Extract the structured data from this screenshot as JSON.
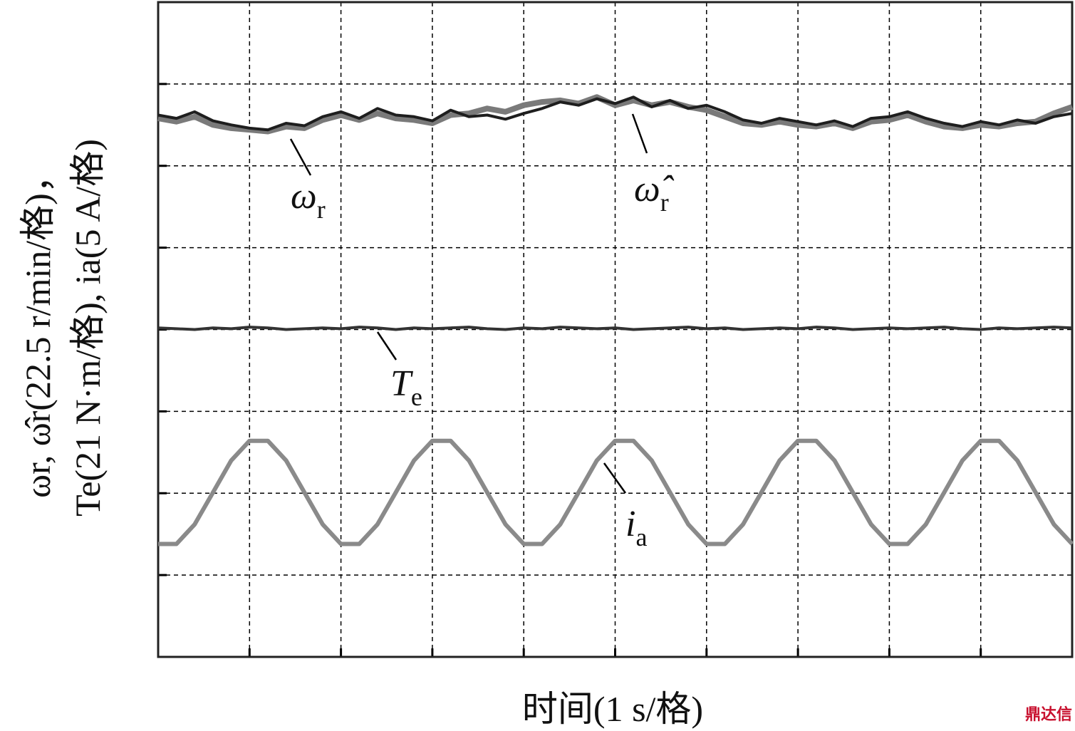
{
  "chart_data": {
    "type": "line",
    "ylabel": [
      "ωr, ω̂r(22.5 r/min/格)，",
      "Te(21 N·m/格), ia(5 A/格)"
    ],
    "xlabel": "时间(1 s/格)",
    "watermark": "鼎达信",
    "xlim": [
      0,
      10
    ],
    "ylim": [
      0,
      8
    ],
    "xticks": [
      0,
      1,
      2,
      3,
      4,
      5,
      6,
      7,
      8,
      9,
      10
    ],
    "yticks": [
      0,
      1,
      2,
      3,
      4,
      5,
      6,
      7,
      8
    ],
    "grid": true,
    "x": [
      0,
      0.2,
      0.4,
      0.6,
      0.8,
      1,
      1.2,
      1.4,
      1.6,
      1.8,
      2,
      2.2,
      2.4,
      2.6,
      2.8,
      3,
      3.2,
      3.4,
      3.6,
      3.8,
      4,
      4.2,
      4.4,
      4.6,
      4.8,
      5,
      5.2,
      5.4,
      5.6,
      5.8,
      6,
      6.2,
      6.4,
      6.6,
      6.8,
      7,
      7.2,
      7.4,
      7.6,
      7.8,
      8,
      8.2,
      8.4,
      8.6,
      8.8,
      9,
      9.2,
      9.4,
      9.6,
      9.8,
      10
    ],
    "series": [
      {
        "name": "ω̂",
        "subscript": "r",
        "color": "#7a7a7a",
        "values": [
          6.58,
          6.54,
          6.6,
          6.5,
          6.46,
          6.44,
          6.42,
          6.48,
          6.46,
          6.56,
          6.62,
          6.56,
          6.64,
          6.58,
          6.56,
          6.52,
          6.62,
          6.64,
          6.7,
          6.66,
          6.74,
          6.78,
          6.8,
          6.76,
          6.84,
          6.74,
          6.8,
          6.74,
          6.78,
          6.72,
          6.68,
          6.6,
          6.52,
          6.5,
          6.54,
          6.5,
          6.48,
          6.52,
          6.46,
          6.54,
          6.56,
          6.62,
          6.54,
          6.48,
          6.46,
          6.5,
          6.48,
          6.52,
          6.54,
          6.64,
          6.72
        ]
      },
      {
        "name": "ω",
        "subscript": "r",
        "color": "#1e1e1e",
        "values": [
          6.62,
          6.58,
          6.66,
          6.55,
          6.5,
          6.46,
          6.44,
          6.52,
          6.49,
          6.6,
          6.66,
          6.58,
          6.7,
          6.62,
          6.6,
          6.55,
          6.68,
          6.6,
          6.62,
          6.57,
          6.64,
          6.7,
          6.78,
          6.74,
          6.82,
          6.76,
          6.84,
          6.72,
          6.8,
          6.7,
          6.74,
          6.66,
          6.56,
          6.52,
          6.58,
          6.54,
          6.5,
          6.55,
          6.48,
          6.58,
          6.6,
          6.66,
          6.58,
          6.52,
          6.48,
          6.54,
          6.5,
          6.56,
          6.52,
          6.6,
          6.64
        ]
      },
      {
        "name": "T",
        "subscript": "e",
        "color": "#333333",
        "values": [
          4.02,
          4.01,
          4.0,
          4.02,
          4.01,
          4.03,
          4.02,
          4.0,
          4.01,
          4.02,
          4.01,
          4.03,
          4.02,
          4.0,
          4.02,
          4.01,
          4.02,
          4.03,
          4.01,
          4.0,
          4.02,
          4.01,
          4.03,
          4.02,
          4.01,
          4.02,
          4.0,
          4.01,
          4.02,
          4.03,
          4.01,
          4.02,
          4.0,
          4.01,
          4.02,
          4.01,
          4.03,
          4.02,
          4.0,
          4.01,
          4.02,
          4.01,
          4.02,
          4.03,
          4.01,
          4.0,
          4.02,
          4.01,
          4.02,
          4.03,
          4.02
        ]
      },
      {
        "name": "i",
        "subscript": "a",
        "color": "#8a8a8a",
        "values": [
          1.38,
          1.38,
          1.62,
          2.01,
          2.4,
          2.64,
          2.64,
          2.4,
          2.01,
          1.62,
          1.38,
          1.38,
          1.62,
          2.01,
          2.4,
          2.64,
          2.64,
          2.4,
          2.01,
          1.62,
          1.38,
          1.38,
          1.62,
          2.01,
          2.4,
          2.64,
          2.64,
          2.4,
          2.01,
          1.62,
          1.38,
          1.38,
          1.62,
          2.01,
          2.4,
          2.64,
          2.64,
          2.4,
          2.01,
          1.62,
          1.38,
          1.38,
          1.62,
          2.01,
          2.4,
          2.64,
          2.64,
          2.4,
          2.01,
          1.62,
          1.38
        ]
      }
    ]
  }
}
